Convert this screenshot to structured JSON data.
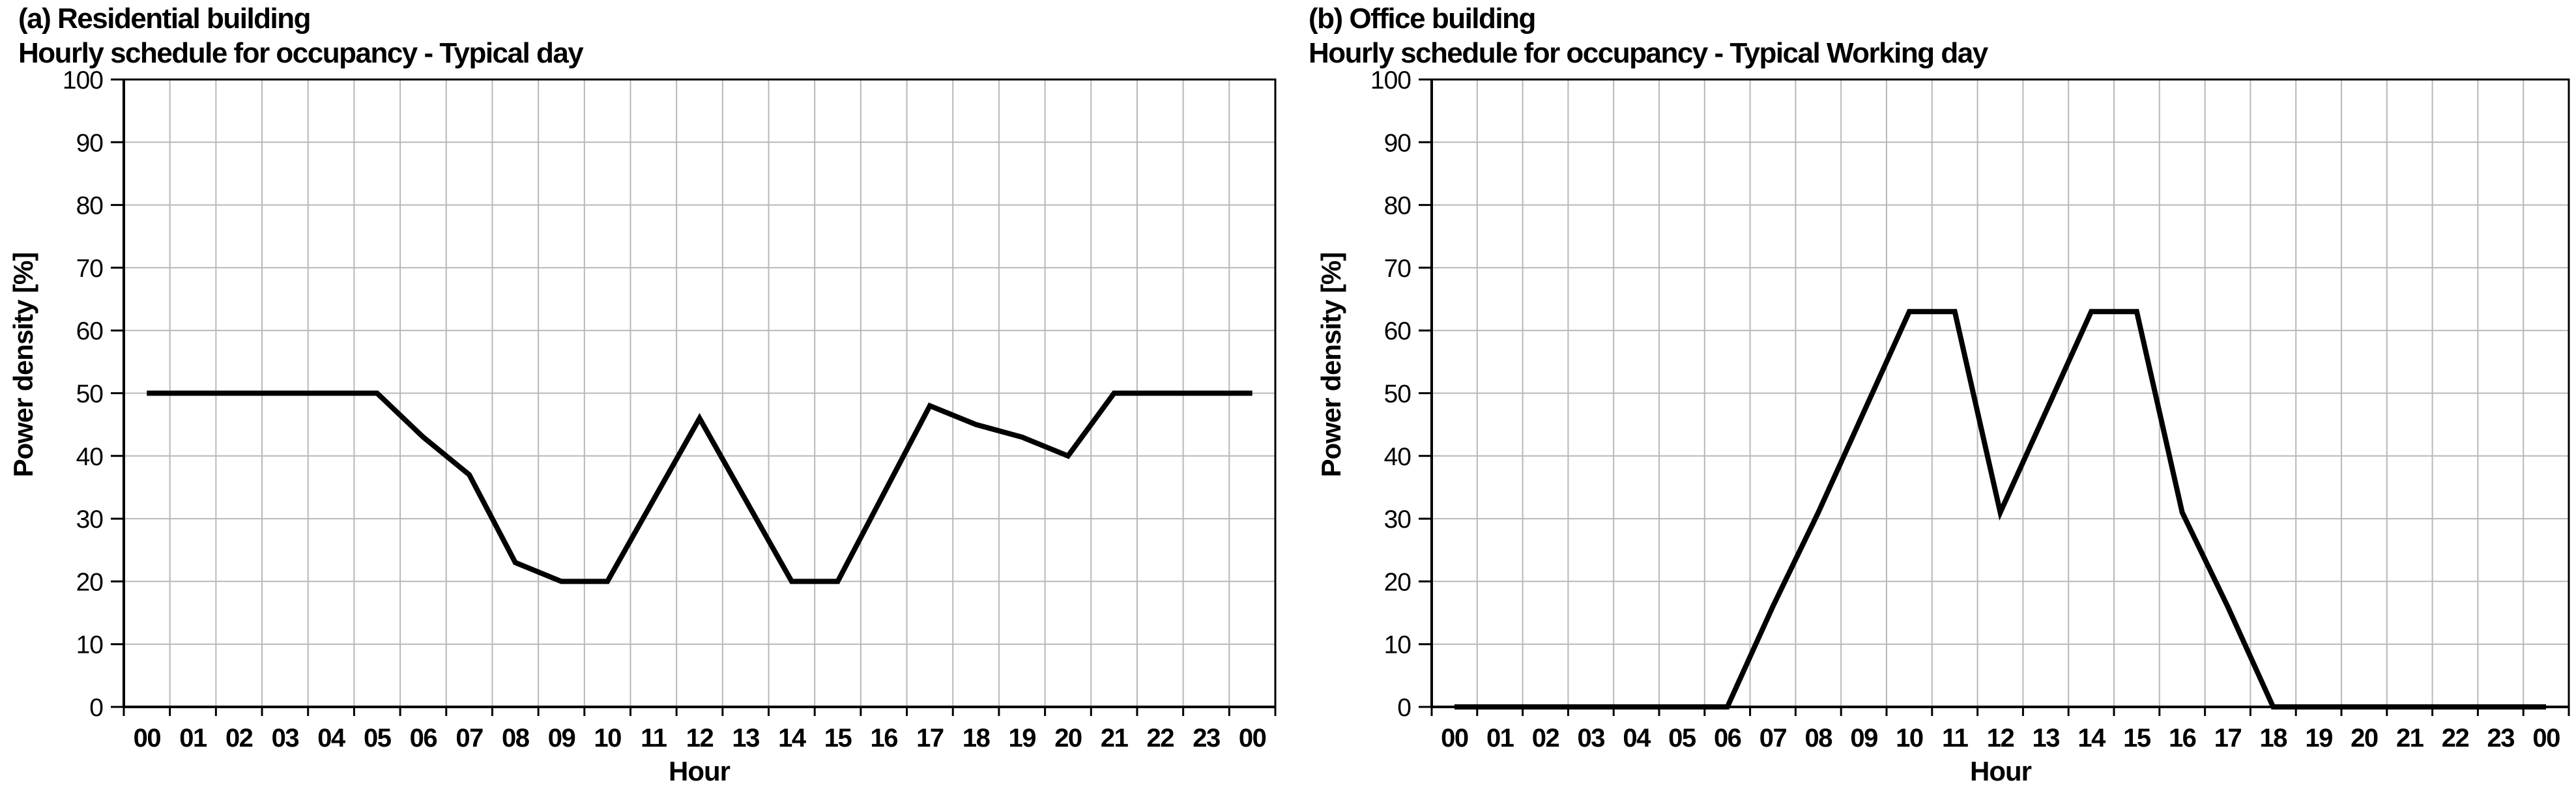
{
  "figure": {
    "background": "#ffffff",
    "text_color": "#000000"
  },
  "chart_data": [
    {
      "type": "line",
      "panel": "a",
      "title": "(a) Residential building",
      "subtitle": "Hourly schedule for occupancy - Typical day",
      "xlabel": "Hour",
      "ylabel": "Power density [%]",
      "categories": [
        "00",
        "01",
        "02",
        "03",
        "04",
        "05",
        "06",
        "07",
        "08",
        "09",
        "10",
        "11",
        "12",
        "13",
        "14",
        "15",
        "16",
        "17",
        "18",
        "19",
        "20",
        "21",
        "22",
        "23",
        "00"
      ],
      "values": [
        50,
        50,
        50,
        50,
        50,
        50,
        43,
        37,
        23,
        20,
        20,
        33,
        46,
        33,
        20,
        20,
        34,
        48,
        45,
        43,
        40,
        50,
        50,
        50,
        50
      ],
      "ylim": [
        0,
        100
      ],
      "yticks": [
        0,
        10,
        20,
        30,
        40,
        50,
        60,
        70,
        80,
        90,
        100
      ],
      "grid": true,
      "legend": "none",
      "line_color": "#000000",
      "grid_color": "#b8b8b8",
      "axis_color": "#000000"
    },
    {
      "type": "line",
      "panel": "b",
      "title": "(b) Office building",
      "subtitle": "Hourly schedule for occupancy - Typical Working day",
      "xlabel": "Hour",
      "ylabel": "Power density [%]",
      "categories": [
        "00",
        "01",
        "02",
        "03",
        "04",
        "05",
        "06",
        "07",
        "08",
        "09",
        "10",
        "11",
        "12",
        "13",
        "14",
        "15",
        "16",
        "17",
        "18",
        "19",
        "20",
        "21",
        "22",
        "23",
        "00"
      ],
      "values": [
        0,
        0,
        0,
        0,
        0,
        0,
        0,
        16,
        31,
        47,
        63,
        63,
        31,
        47,
        63,
        63,
        31,
        16,
        0,
        0,
        0,
        0,
        0,
        0,
        0
      ],
      "ylim": [
        0,
        100
      ],
      "yticks": [
        0,
        10,
        20,
        30,
        40,
        50,
        60,
        70,
        80,
        90,
        100
      ],
      "grid": true,
      "legend": "none",
      "line_color": "#000000",
      "grid_color": "#b8b8b8",
      "axis_color": "#000000"
    }
  ]
}
